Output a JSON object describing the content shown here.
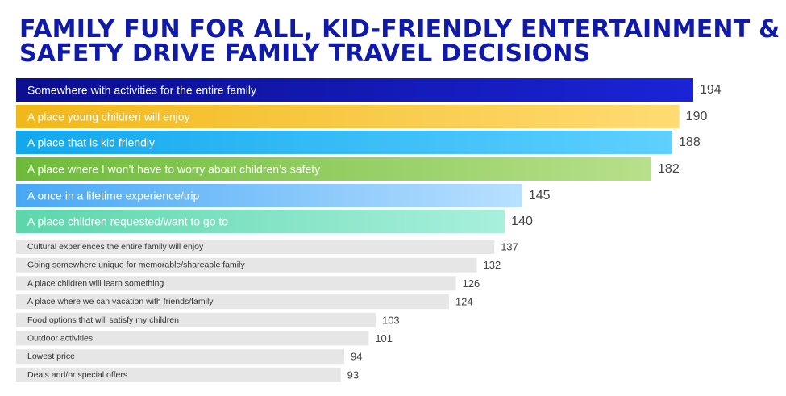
{
  "title_lines": [
    "FAMILY FUN FOR ALL, KID-FRIENDLY ENTERTAINMENT &",
    "SAFETY DRIVE FAMILY TRAVEL DECISIONS"
  ],
  "chart_data": {
    "type": "bar",
    "orientation": "horizontal",
    "title": "FAMILY FUN FOR ALL, KID-FRIENDLY ENTERTAINMENT & SAFETY DRIVE FAMILY TRAVEL DECISIONS",
    "xlabel": "",
    "ylabel": "",
    "xlim": [
      0,
      194
    ],
    "grid": false,
    "legend": "none",
    "categories": [
      "Somewhere with activities for the entire family",
      "A place young children will enjoy",
      "A place that is kid friendly",
      "A place where I won’t have to worry about children’s safety",
      "A once in a lifetime experience/trip",
      "A place children requested/want to go to",
      "Cultural experiences the entire family will enjoy",
      "Going somewhere unique for memorable/shareable family",
      "A place children will learn something",
      "A place where we can vacation with friends/family",
      "Food options that will satisfy my children",
      "Outdoor activities",
      "Lowest price",
      "Deals and/or special offers"
    ],
    "values": [
      194,
      190,
      188,
      182,
      145,
      140,
      137,
      132,
      126,
      124,
      103,
      101,
      94,
      93
    ],
    "highlight_colors": [
      [
        "#0b0f8f",
        "#1a24d6"
      ],
      [
        "#f2b81a",
        "#ffdb73"
      ],
      [
        "#12a8ee",
        "#5fd0ff"
      ],
      [
        "#6dbb3a",
        "#b7e08a"
      ],
      [
        "#47a8f5",
        "#b9e0ff"
      ],
      [
        "#5dd6ac",
        "#a8f0dc"
      ]
    ],
    "other_bar_color": "#e6e6e6",
    "label_color_highlight": "#ffffff",
    "label_color_other": "#333333",
    "value_color": "#444444"
  }
}
